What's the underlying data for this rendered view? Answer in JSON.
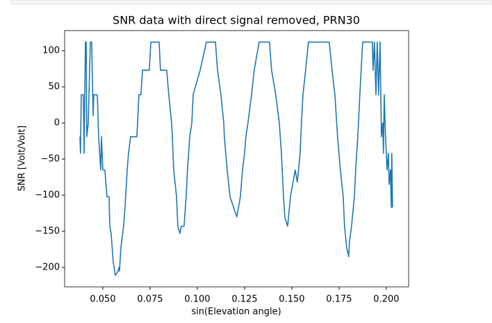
{
  "chart_data": {
    "type": "line",
    "title": "SNR data with direct signal removed, PRN30",
    "x_label": "sin(Elevation angle)",
    "y_label": "SNR [Volt/Volt]",
    "xlim": [
      0.0298,
      0.2118
    ],
    "ylim": [
      -226.9,
      127.9
    ],
    "xticks": [
      {
        "value": 0.05,
        "label": "0.050"
      },
      0.075,
      {
        "value": 0.1,
        "label": "0.100"
      },
      0.125,
      {
        "value": 0.15,
        "label": "0.150"
      },
      0.175,
      {
        "value": 0.2,
        "label": "0.200"
      }
    ],
    "yticks": [
      {
        "value": -200,
        "label": "−200"
      },
      {
        "value": -150,
        "label": "−150"
      },
      {
        "value": -100,
        "label": "−100"
      },
      {
        "value": -50,
        "label": "−50"
      },
      0,
      50,
      100
    ],
    "grid": false,
    "series": [
      {
        "color": "#1f77b4",
        "x": [
          0.0379,
          0.0382,
          0.0386,
          0.0397,
          0.0401,
          0.0408,
          0.0412,
          0.0415,
          0.0423,
          0.0434,
          0.0441,
          0.0449,
          0.0452,
          0.0471,
          0.0478,
          0.0489,
          0.0493,
          0.05,
          0.0511,
          0.0522,
          0.0533,
          0.0537,
          0.0544,
          0.0555,
          0.0566,
          0.0581,
          0.0585,
          0.0588,
          0.0596,
          0.061,
          0.0614,
          0.0621,
          0.0629,
          0.0636,
          0.0647,
          0.068,
          0.0684,
          0.0691,
          0.0702,
          0.071,
          0.0746,
          0.0754,
          0.0798,
          0.0805,
          0.0838,
          0.0849,
          0.0864,
          0.0868,
          0.0875,
          0.089,
          0.0897,
          0.0908,
          0.0915,
          0.093,
          0.0941,
          0.0948,
          0.096,
          0.0971,
          0.0978,
          0.1015,
          0.1048,
          0.1096,
          0.1107,
          0.1125,
          0.114,
          0.1143,
          0.1158,
          0.1173,
          0.1209,
          0.1228,
          0.1239,
          0.125,
          0.1257,
          0.1268,
          0.1287,
          0.1301,
          0.1327,
          0.1382,
          0.1393,
          0.1415,
          0.1434,
          0.1445,
          0.1456,
          0.1463,
          0.1478,
          0.1493,
          0.1518,
          0.1529,
          0.1544,
          0.1551,
          0.1559,
          0.1573,
          0.1588,
          0.1698,
          0.1713,
          0.1728,
          0.1742,
          0.1757,
          0.1772,
          0.1779,
          0.179,
          0.1801,
          0.1805,
          0.1816,
          0.1831,
          0.1838,
          0.1849,
          0.186,
          0.1867,
          0.1875,
          0.1926,
          0.193,
          0.1937,
          0.1945,
          0.1952,
          0.1959,
          0.1967,
          0.1974,
          0.1981,
          0.1985,
          0.1989,
          0.1996,
          0.2004,
          0.2011,
          0.2015,
          0.2022,
          0.2026,
          0.2029,
          0.2033
        ],
        "values": [
          -19,
          -42,
          39,
          39,
          -42,
          112,
          112,
          -19,
          0,
          112,
          112,
          10,
          39,
          39,
          -19,
          -65,
          -19,
          -65,
          -65,
          -102,
          -102,
          -143,
          -153,
          -192,
          -211,
          -205,
          -200,
          -205,
          -172,
          -143,
          -130,
          -102,
          -65,
          -42,
          -19,
          -19,
          0,
          39,
          39,
          73,
          73,
          112,
          112,
          73,
          73,
          39,
          0,
          -19,
          -65,
          -102,
          -143,
          -153,
          -143,
          -143,
          -102,
          -65,
          -19,
          0,
          39,
          73,
          112,
          112,
          73,
          39,
          0,
          -19,
          -65,
          -102,
          -130,
          -102,
          -65,
          -42,
          -19,
          0,
          39,
          73,
          112,
          112,
          73,
          39,
          0,
          -42,
          -102,
          -130,
          -143,
          -102,
          -65,
          -82,
          -42,
          0,
          39,
          73,
          112,
          112,
          73,
          39,
          -19,
          -65,
          -102,
          -143,
          -172,
          -185,
          -165,
          -143,
          -102,
          -65,
          -19,
          39,
          73,
          112,
          112,
          73,
          112,
          39,
          112,
          39,
          112,
          -19,
          0,
          -42,
          39,
          -19,
          -65,
          -42,
          -85,
          -65,
          -117,
          -42,
          -117
        ]
      }
    ]
  }
}
